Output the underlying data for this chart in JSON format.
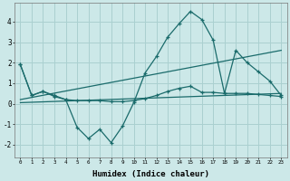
{
  "xlabel": "Humidex (Indice chaleur)",
  "bg_color": "#cce8e8",
  "grid_color": "#aad0d0",
  "line_color": "#1a6b6b",
  "xlim": [
    -0.5,
    23.5
  ],
  "ylim": [
    -2.6,
    4.9
  ],
  "yticks": [
    -2,
    -1,
    0,
    1,
    2,
    3,
    4
  ],
  "series1_x": [
    0,
    1,
    2,
    3,
    4,
    5,
    6,
    7,
    8,
    9,
    10,
    11,
    12,
    13,
    14,
    15,
    16,
    17,
    18,
    19,
    20,
    21,
    22,
    23
  ],
  "series1_y": [
    1.9,
    0.4,
    0.6,
    0.4,
    0.2,
    -1.15,
    -1.7,
    -1.25,
    -1.9,
    -1.1,
    0.05,
    1.5,
    2.3,
    3.25,
    3.9,
    4.5,
    4.1,
    3.1,
    0.5,
    2.6,
    2.0,
    1.55,
    1.1,
    0.4
  ],
  "series2_x": [
    0,
    1,
    2,
    3,
    4,
    5,
    6,
    7,
    8,
    9,
    10,
    11,
    12,
    13,
    14,
    15,
    16,
    17,
    18,
    19,
    20,
    21,
    22,
    23
  ],
  "series2_y": [
    1.9,
    0.4,
    0.6,
    0.35,
    0.2,
    0.15,
    0.15,
    0.15,
    0.1,
    0.1,
    0.15,
    0.25,
    0.4,
    0.6,
    0.75,
    0.85,
    0.55,
    0.55,
    0.5,
    0.5,
    0.5,
    0.45,
    0.4,
    0.35
  ],
  "series3_x": [
    0,
    23
  ],
  "series3_y": [
    0.05,
    0.5
  ],
  "series4_x": [
    0,
    23
  ],
  "series4_y": [
    0.2,
    2.6
  ]
}
